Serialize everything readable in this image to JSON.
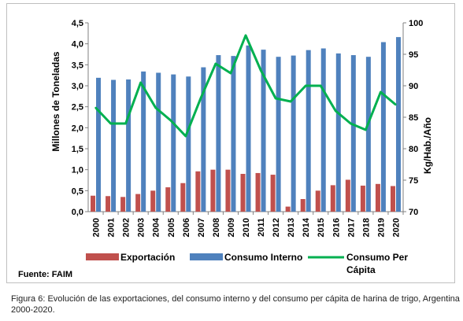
{
  "chart_data": {
    "type": "bar",
    "categories": [
      "2000",
      "2001",
      "2002",
      "2003",
      "2004",
      "2005",
      "2006",
      "2007",
      "2008",
      "2009",
      "2010",
      "2011",
      "2012",
      "2013",
      "2014",
      "2015",
      "2016",
      "2017",
      "2018",
      "2019",
      "2020"
    ],
    "series": [
      {
        "name": "Exportación",
        "kind": "bar",
        "axis": "left",
        "color": "#c0504d",
        "values": [
          0.38,
          0.37,
          0.35,
          0.42,
          0.5,
          0.58,
          0.68,
          0.96,
          1.0,
          1.0,
          0.9,
          0.92,
          0.88,
          0.12,
          0.3,
          0.5,
          0.63,
          0.76,
          0.62,
          0.66,
          0.61
        ]
      },
      {
        "name": "Consumo Interno",
        "kind": "bar",
        "axis": "left",
        "color": "#4f81bd",
        "values": [
          3.19,
          3.14,
          3.15,
          3.34,
          3.31,
          3.27,
          3.22,
          3.44,
          3.73,
          3.71,
          3.96,
          3.86,
          3.69,
          3.72,
          3.85,
          3.89,
          3.77,
          3.73,
          3.69,
          4.04,
          4.16
        ]
      },
      {
        "name": "Consumo Per Cápita",
        "kind": "line",
        "axis": "right",
        "color": "#00b050",
        "values": [
          86.5,
          84.0,
          84.0,
          90.5,
          86.5,
          84.5,
          82.0,
          88.0,
          93.5,
          92.0,
          98.0,
          92.5,
          88.0,
          87.5,
          90.0,
          90.0,
          86.0,
          84.0,
          83.0,
          89.0,
          87.0
        ]
      }
    ],
    "ylabel": "Millones de Toneladas",
    "ylabel_right": "Kg/Hab./Año",
    "ylim": [
      0,
      4.5
    ],
    "ylim_right": [
      70,
      100
    ],
    "yticks": [
      "0,0",
      "0,5",
      "1,0",
      "1,5",
      "2,0",
      "2,5",
      "3,0",
      "3,5",
      "4,0",
      "4,5"
    ],
    "yticks_right": [
      "70",
      "75",
      "80",
      "85",
      "90",
      "95",
      "100"
    ],
    "legend_position": "bottom",
    "grid": false
  },
  "source": "Fuente: FAIM",
  "legend": {
    "exportacion": "Exportación",
    "consumo_interno": "Consumo Interno",
    "per_capita_line1": "Consumo Per",
    "per_capita_line2": "Cápita"
  },
  "caption": "Figura 6: Evolución de las exportaciones, del consumo interno y del consumo per cápita de harina de trigo, Argentina 2000-2020."
}
